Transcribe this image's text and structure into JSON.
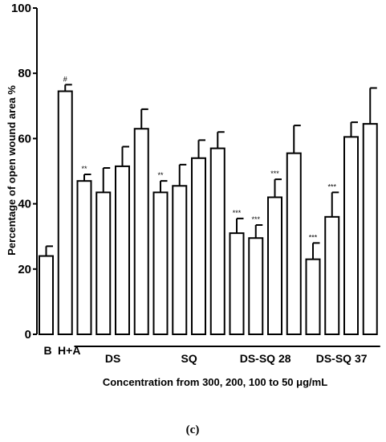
{
  "chart_data": {
    "type": "bar",
    "ylabel": "Percentage of open wound area %",
    "xlabel": "Concentration from 300, 200, 100 to 50 μg/mL",
    "caption": "(c)",
    "ylim": [
      0,
      100
    ],
    "yticks": [
      0,
      20,
      40,
      60,
      80,
      100
    ],
    "grid": false,
    "bar_color": "#ffffff",
    "edge_color": "#000000",
    "bars": [
      {
        "value": 24,
        "error": 3,
        "sig": ""
      },
      {
        "value": 74.5,
        "error": 2,
        "sig": "#"
      },
      {
        "value": 47,
        "error": 2,
        "sig": "**"
      },
      {
        "value": 43.5,
        "error": 7.5,
        "sig": ""
      },
      {
        "value": 51.5,
        "error": 6,
        "sig": ""
      },
      {
        "value": 63,
        "error": 6,
        "sig": ""
      },
      {
        "value": 43.5,
        "error": 3.5,
        "sig": "**"
      },
      {
        "value": 45.5,
        "error": 6.5,
        "sig": ""
      },
      {
        "value": 54,
        "error": 5.5,
        "sig": ""
      },
      {
        "value": 57,
        "error": 5,
        "sig": ""
      },
      {
        "value": 31,
        "error": 4.5,
        "sig": "***"
      },
      {
        "value": 29.5,
        "error": 4,
        "sig": "***"
      },
      {
        "value": 42,
        "error": 5.5,
        "sig": "***"
      },
      {
        "value": 55.5,
        "error": 8.5,
        "sig": ""
      },
      {
        "value": 23,
        "error": 5,
        "sig": "***"
      },
      {
        "value": 36,
        "error": 7.5,
        "sig": "***"
      },
      {
        "value": 60.5,
        "error": 4.5,
        "sig": ""
      },
      {
        "value": 64.5,
        "error": 11,
        "sig": ""
      }
    ],
    "single_labels": [
      {
        "label": "B",
        "bar": 0
      },
      {
        "label": "H+A",
        "bar": 1
      }
    ],
    "groups": [
      {
        "label": "DS",
        "bars": [
          2,
          3,
          4,
          5
        ]
      },
      {
        "label": "SQ",
        "bars": [
          6,
          7,
          8,
          9
        ]
      },
      {
        "label": "DS-SQ 28",
        "bars": [
          10,
          11,
          12,
          13
        ]
      },
      {
        "label": "DS-SQ 37",
        "bars": [
          14,
          15,
          16,
          17
        ]
      }
    ]
  }
}
